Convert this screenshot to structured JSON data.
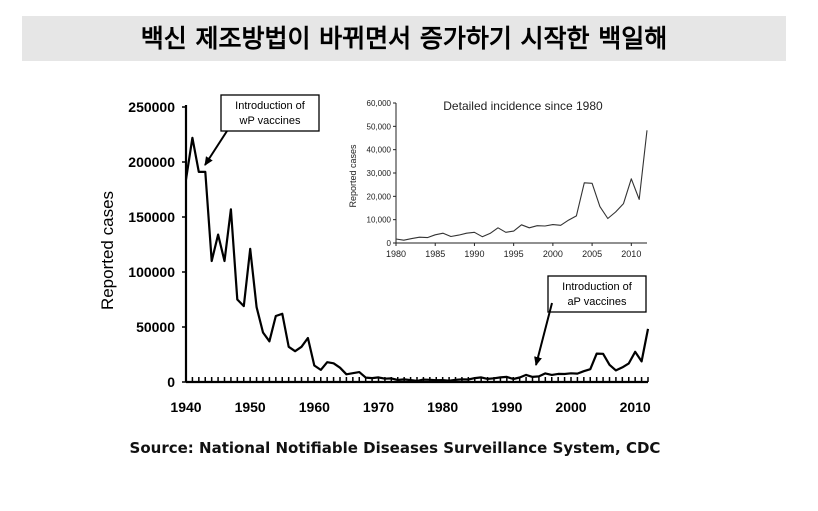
{
  "title": "백신 제조방법이 바뀌면서 증가하기 시작한 백일해",
  "source": "Source: National Notifiable Diseases Surveillance System, CDC",
  "chart_data": [
    {
      "type": "line",
      "ylabel": "Reported cases",
      "xlim": [
        1940,
        2012
      ],
      "ylim": [
        0,
        250000
      ],
      "x_ticks": [
        1940,
        1950,
        1960,
        1970,
        1980,
        1990,
        2000,
        2010
      ],
      "y_ticks": [
        0,
        50000,
        100000,
        150000,
        200000,
        250000
      ],
      "annotations": [
        {
          "text": [
            "Introduction of",
            "wP vaccines"
          ]
        },
        {
          "text": [
            "Introduction of",
            "aP vaccines"
          ]
        }
      ],
      "series": [
        {
          "x": [
            1940,
            1941,
            1942,
            1943,
            1944,
            1945,
            1946,
            1947,
            1948,
            1949,
            1950,
            1951,
            1952,
            1953,
            1954,
            1955,
            1956,
            1957,
            1958,
            1959,
            1960,
            1961,
            1962,
            1963,
            1964,
            1965,
            1966,
            1967,
            1968,
            1969,
            1970,
            1971,
            1972,
            1973,
            1974,
            1975,
            1976,
            1977,
            1978,
            1979,
            1980,
            1981,
            1982,
            1983,
            1984,
            1985,
            1986,
            1987,
            1988,
            1989,
            1990,
            1991,
            1992,
            1993,
            1994,
            1995,
            1996,
            1997,
            1998,
            1999,
            2000,
            2001,
            2002,
            2003,
            2004,
            2005,
            2006,
            2007,
            2008,
            2009,
            2010,
            2011,
            2012
          ],
          "y": [
            184000,
            222000,
            191000,
            191000,
            110000,
            134000,
            110000,
            157000,
            75000,
            69000,
            121000,
            68000,
            45000,
            37000,
            60000,
            62000,
            32000,
            28000,
            32000,
            40000,
            15000,
            11000,
            18000,
            17000,
            13000,
            7000,
            8000,
            9000,
            4000,
            3500,
            4200,
            3000,
            3300,
            1800,
            2400,
            1700,
            1000,
            2200,
            2000,
            1600,
            1700,
            1200,
            1900,
            2500,
            2300,
            3500,
            4200,
            2800,
            3400,
            4200,
            4600,
            2700,
            4100,
            6500,
            4600,
            5100,
            7800,
            6500,
            7400,
            7300,
            7900,
            7600,
            9800,
            11600,
            25800,
            25600,
            15600,
            10500,
            13300,
            16900,
            27500,
            18700,
            48300
          ]
        }
      ]
    },
    {
      "type": "line",
      "title": "Detailed incidence since 1980",
      "ylabel": "Reported cases",
      "xlim": [
        1980,
        2012
      ],
      "ylim": [
        0,
        60000
      ],
      "x_ticks": [
        1980,
        1985,
        1990,
        1995,
        2000,
        2005,
        2010
      ],
      "y_ticks": [
        0,
        10000,
        20000,
        30000,
        40000,
        50000,
        60000
      ],
      "y_tick_labels": [
        "0",
        "10,000",
        "20,000",
        "30,000",
        "40,000",
        "50,000",
        "60,000"
      ],
      "series": [
        {
          "x": [
            1980,
            1981,
            1982,
            1983,
            1984,
            1985,
            1986,
            1987,
            1988,
            1989,
            1990,
            1991,
            1992,
            1993,
            1994,
            1995,
            1996,
            1997,
            1998,
            1999,
            2000,
            2001,
            2002,
            2003,
            2004,
            2005,
            2006,
            2007,
            2008,
            2009,
            2010,
            2011,
            2012
          ],
          "y": [
            1700,
            1200,
            1900,
            2500,
            2300,
            3500,
            4200,
            2800,
            3400,
            4200,
            4600,
            2700,
            4100,
            6500,
            4600,
            5100,
            7800,
            6500,
            7400,
            7300,
            7900,
            7600,
            9800,
            11600,
            25800,
            25600,
            15600,
            10500,
            13300,
            16900,
            27500,
            18700,
            48300
          ]
        }
      ]
    }
  ]
}
